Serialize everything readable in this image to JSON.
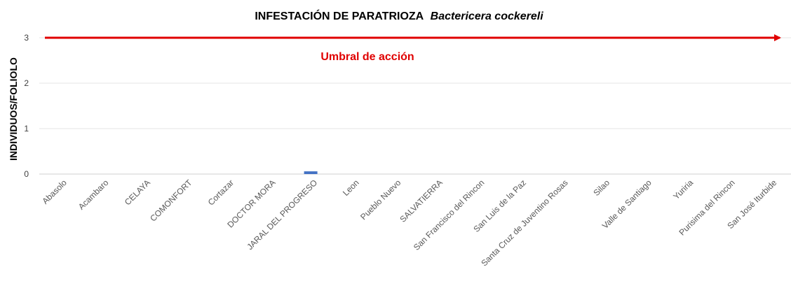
{
  "chart_data": {
    "type": "bar",
    "title": "INFESTACIÓN DE PARATRIOZA",
    "title_species": "Bactericera cockereli",
    "xlabel": "",
    "ylabel": "INDIVIDUOS/FOLIOLO",
    "ylim": [
      0,
      3
    ],
    "yticks": [
      "0",
      "1",
      "2",
      "3"
    ],
    "grid": true,
    "legend": "none",
    "categories": [
      "Abasolo",
      "Acambaro",
      "CELAYA",
      "COMONFORT",
      "Cortazar",
      "DOCTOR MORA",
      "JARAL DEL PROGRESO",
      "Leon",
      "Pueblo Nuevo",
      "SALVATIERRA",
      "San Francisco del Rincon",
      "San Luis de la Paz",
      "Santa Cruz de Juventino Rosas",
      "Silao",
      "Valle de Santiago",
      "Yuriria",
      "Purisima del Rincon",
      "San José Iturbide"
    ],
    "values": [
      0,
      0,
      0,
      0,
      0,
      0,
      0.06,
      0,
      0,
      0,
      0,
      0,
      0,
      0,
      0,
      0,
      0,
      0
    ],
    "bar_color": "#4472C4",
    "threshold": {
      "value": 3,
      "label": "Umbral de acción",
      "color": "#E00000"
    }
  }
}
